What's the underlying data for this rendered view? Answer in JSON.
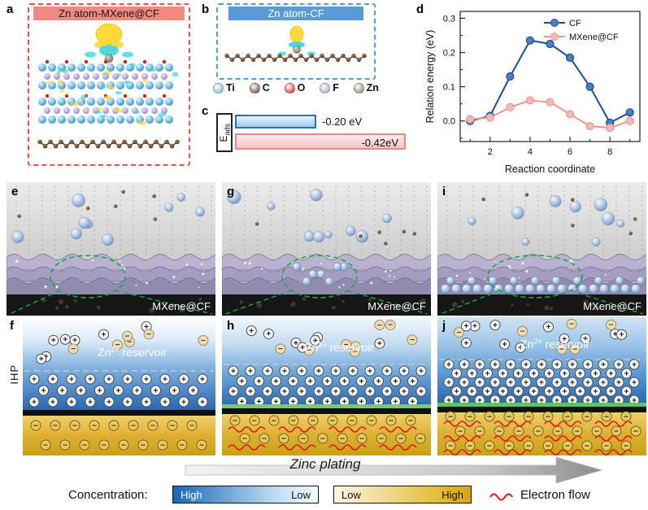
{
  "panels": {
    "a": {
      "letter": "a",
      "title": "Zn atom-MXene@CF"
    },
    "b": {
      "letter": "b",
      "title": "Zn atom-CF"
    },
    "c": {
      "letter": "c",
      "eads_main": "E",
      "eads_sub": "ads"
    },
    "d": {
      "letter": "d"
    },
    "e": {
      "letter": "e",
      "label": "MXene@CF"
    },
    "f": {
      "letter": "f",
      "ihp": "IHP",
      "reservoir": {
        "base": "Zn",
        "sup": "2+",
        "rest": " reservoir"
      }
    },
    "g": {
      "letter": "g",
      "label": "MXene@CF"
    },
    "h": {
      "letter": "h",
      "reservoir": {
        "base": "Zn",
        "sup": "2+",
        "rest": " reservoir"
      }
    },
    "i": {
      "letter": "i",
      "label": "MXene@CF"
    },
    "j": {
      "letter": "j",
      "reservoir": {
        "base": "Zn",
        "sup": "2+",
        "rest": " reservoir"
      }
    }
  },
  "legend_atoms": [
    {
      "name": "Ti",
      "color": "#6db8dd"
    },
    {
      "name": "C",
      "color": "#5a3b2a"
    },
    {
      "name": "O",
      "color": "#d01f10"
    },
    {
      "name": "F",
      "color": "#a89cd0"
    },
    {
      "name": "Zn",
      "color": "#80806b"
    }
  ],
  "chart_data": [
    {
      "id": "eads-bars",
      "type": "bar",
      "orientation": "horizontal",
      "axis_label": "Eads",
      "categories": [
        "CF",
        "MXene@CF"
      ],
      "values": [
        -0.2,
        -0.42
      ],
      "value_labels": [
        "-0.20 eV",
        "-0.42eV"
      ],
      "unit": "eV",
      "colors": [
        "#9cc8ec",
        "#f6c3c3"
      ]
    },
    {
      "id": "reaction-energy",
      "type": "line",
      "xlabel": "Reaction coordinate",
      "ylabel": "Relation energy (eV)",
      "x": [
        1,
        2,
        3,
        4,
        5,
        6,
        7,
        8,
        9
      ],
      "series": [
        {
          "name": "CF",
          "line": "#1f4e8c",
          "fill": "#4a7fc1",
          "values": [
            0.0,
            0.015,
            0.13,
            0.235,
            0.225,
            0.185,
            0.1,
            -0.005,
            0.025
          ]
        },
        {
          "name": "MXene@CF",
          "line": "#e89694",
          "fill": "#f6b9b6",
          "values": [
            0.005,
            0.01,
            0.04,
            0.06,
            0.055,
            0.02,
            -0.015,
            -0.02,
            0.0
          ]
        }
      ],
      "xticks": [
        2,
        4,
        6,
        8
      ],
      "yticks": [
        0.0,
        0.1,
        0.2,
        0.3
      ],
      "xlim": [
        0.5,
        9.5
      ],
      "ylim": [
        -0.06,
        0.32
      ],
      "legend_position": "top-right",
      "grid": false
    }
  ],
  "footer": {
    "zinc_plating": "Zinc plating",
    "concentration_label": "Concentration:",
    "blue_scale": {
      "left": "High",
      "right": "Low"
    },
    "gold_scale": {
      "left": "Low",
      "right": "High"
    },
    "electron_flow": "Electron flow"
  }
}
